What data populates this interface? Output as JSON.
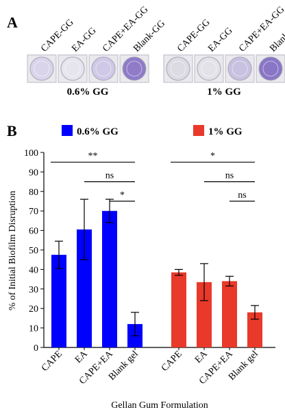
{
  "panel_a": {
    "letter": "A",
    "groups": [
      {
        "title": "0.6% GG",
        "wells": [
          "CAPE-GG",
          "EA-GG",
          "CAPE+EA-GG",
          "Blank-GG"
        ],
        "well_colors": [
          "#d9d4ea",
          "#e6e4ee",
          "#cfc8e6",
          "#8f7bc8"
        ]
      },
      {
        "title": "1% GG",
        "wells": [
          "CAPE-GG",
          "EA-GG",
          "CAPE+EA-GG",
          "Blank-GG"
        ],
        "well_colors": [
          "#dcdbe2",
          "#e3e2e8",
          "#c9c1e0",
          "#8a76c6"
        ]
      }
    ]
  },
  "chart_data": {
    "panel_letter": "B",
    "type": "bar",
    "xlabel": "Gellan Gum Formulation",
    "ylabel": "% of Initial Biofilm Disruption",
    "ylim": [
      0,
      100
    ],
    "yticks": [
      0,
      10,
      20,
      30,
      40,
      50,
      60,
      70,
      80,
      90,
      100
    ],
    "categories": [
      "CAPE",
      "EA",
      "CAPE+EA",
      "Blank gel"
    ],
    "series": [
      {
        "name": "0.6% GG",
        "color": "#0000ff",
        "values": [
          47.5,
          60.5,
          70,
          12
        ],
        "errors": [
          7,
          15.5,
          6,
          6
        ]
      },
      {
        "name": "1% GG",
        "color": "#e8392a",
        "values": [
          38.5,
          33.5,
          34,
          18
        ],
        "errors": [
          1.5,
          9.5,
          2.5,
          3.5
        ]
      }
    ],
    "significance": [
      {
        "series": 0,
        "from": 0,
        "to": 3,
        "label": "**",
        "y": 95
      },
      {
        "series": 0,
        "from": 1,
        "to": 3,
        "label": "ns",
        "y": 85
      },
      {
        "series": 0,
        "from": 2,
        "to": 3,
        "label": "*",
        "y": 75
      },
      {
        "series": 1,
        "from": 0,
        "to": 3,
        "label": "*",
        "y": 95
      },
      {
        "series": 1,
        "from": 1,
        "to": 3,
        "label": "ns",
        "y": 85
      },
      {
        "series": 1,
        "from": 2,
        "to": 3,
        "label": "ns",
        "y": 75
      }
    ],
    "legend_position": "top"
  }
}
